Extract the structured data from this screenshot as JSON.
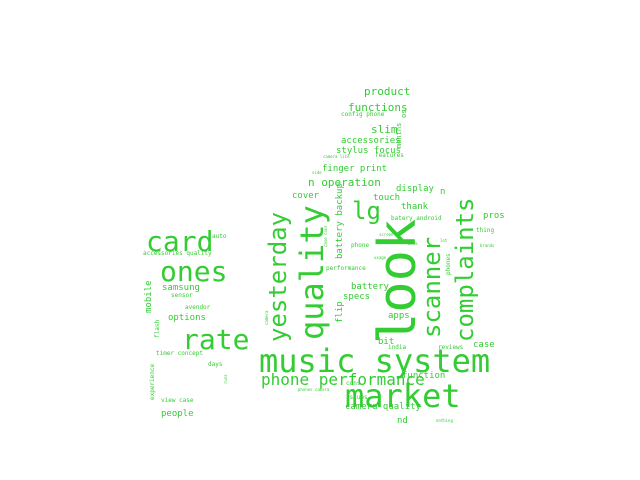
{
  "wordcloud": {
    "color": "#33cc33",
    "words": {
      "look": "look",
      "music_system": "music system",
      "market": "market",
      "quality": "quality",
      "yesterday": "yesterday",
      "complaints": "complaints",
      "scanner": "scanner",
      "card": "card",
      "ones": "ones",
      "rate": "rate",
      "lg": "lg",
      "phone_performance": "phone performance",
      "product": "product",
      "functions": "functions",
      "slim": "slim",
      "accessories": "accessories",
      "stylus_focus": "stylus focus",
      "months": "months",
      "os": "os",
      "config_phone": "config phone",
      "features": "features",
      "camera_lite": "camera lite",
      "finger_print": "finger print",
      "n_operation": "n operation",
      "side": "side",
      "display": "display",
      "n": "n",
      "thank": "thank",
      "cover": "cover",
      "touch": "touch",
      "pros": "pros",
      "batery_android": "batery android",
      "thing": "thing",
      "screen": "screen",
      "lot": "lot",
      "brands": "brands",
      "phones": "phones",
      "phone": "phone",
      "usage": "usage",
      "case_cons": "case cons",
      "battery_backup": "battery backup",
      "performance": "performance",
      "battery": "battery",
      "specs": "specs",
      "apps": "apps",
      "flip": "flip",
      "bit": "bit",
      "india": "india",
      "reviews": "reviews",
      "case": "case",
      "function": "function",
      "week": "week",
      "camera": "camera",
      "cons": "cons",
      "phones_camera": "phones camera",
      "issues": "issues",
      "camera_quality": "camera quality",
      "nd": "nd",
      "auto": "auto",
      "accessories_quality": "accessories quality",
      "samsung": "samsung",
      "sensor": "sensor",
      "avendor": "avendor",
      "options": "options",
      "mobile": "mobile",
      "flash": "flash",
      "timer_concept": "timer concept",
      "days": "days",
      "experience": "experience",
      "view_case": "view case",
      "people": "people",
      "runs": "runs",
      "nothing": "nothing"
    }
  }
}
